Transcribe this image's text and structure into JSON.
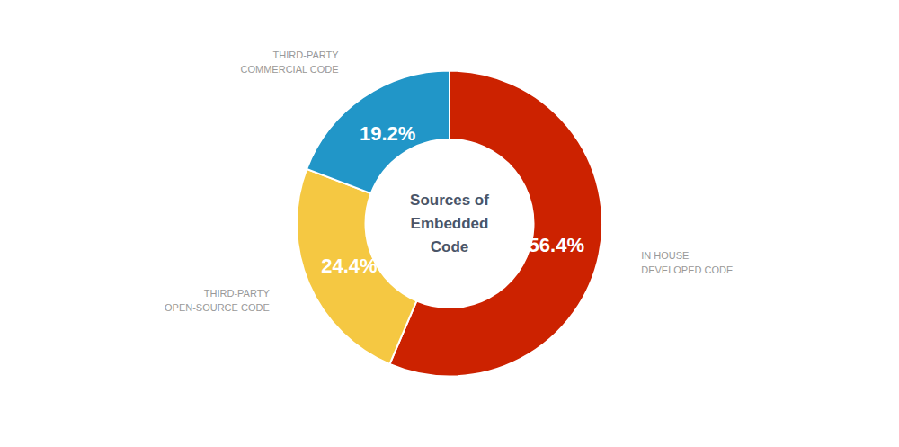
{
  "chart_data": {
    "type": "pie",
    "categories": [
      "IN HOUSE\nDEVELOPED CODE",
      "THIRD-PARTY\nOPEN-SOURCE CODE",
      "THIRD-PARTY\nCOMMERCIAL CODE"
    ],
    "values": [
      56.4,
      24.4,
      19.2
    ],
    "value_labels": [
      "56.4%",
      "24.4%",
      "19.2%"
    ],
    "colors": [
      "#CC2200",
      "#F5C842",
      "#2196C8"
    ],
    "data_labels": true,
    "annotations": [
      "Sources of",
      "Embedded",
      "Code"
    ]
  }
}
